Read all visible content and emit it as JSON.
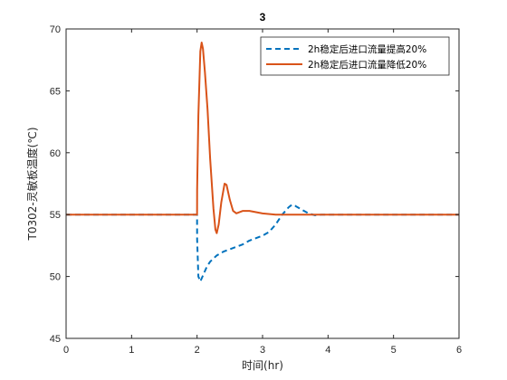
{
  "chart_data": {
    "type": "line",
    "title": "3",
    "xlabel": "时间(hr)",
    "ylabel": "T0302-灵敏板温度(℃)",
    "xlim": [
      0,
      6
    ],
    "ylim": [
      45,
      70
    ],
    "xticks": [
      "0",
      "1",
      "2",
      "3",
      "4",
      "5",
      "6"
    ],
    "yticks": [
      "45",
      "50",
      "55",
      "60",
      "65",
      "70"
    ],
    "grid": false,
    "legend_position": "top-right",
    "series": [
      {
        "name": "2h稳定后进口流量提高20%",
        "color": "#0072BD",
        "style": "dashed",
        "points": [
          [
            0,
            55
          ],
          [
            2,
            55
          ],
          [
            2.001,
            53
          ],
          [
            2.02,
            50
          ],
          [
            2.05,
            49.6
          ],
          [
            2.1,
            50.2
          ],
          [
            2.15,
            50.8
          ],
          [
            2.2,
            51.2
          ],
          [
            2.3,
            51.7
          ],
          [
            2.4,
            52.0
          ],
          [
            2.5,
            52.2
          ],
          [
            2.6,
            52.4
          ],
          [
            2.7,
            52.6
          ],
          [
            2.8,
            52.9
          ],
          [
            2.9,
            53.1
          ],
          [
            3.0,
            53.3
          ],
          [
            3.1,
            53.6
          ],
          [
            3.2,
            54.2
          ],
          [
            3.3,
            55.0
          ],
          [
            3.4,
            55.6
          ],
          [
            3.45,
            55.8
          ],
          [
            3.5,
            55.7
          ],
          [
            3.6,
            55.4
          ],
          [
            3.7,
            55.1
          ],
          [
            3.8,
            54.95
          ],
          [
            3.9,
            55.0
          ],
          [
            4.0,
            55.0
          ],
          [
            6,
            55
          ]
        ]
      },
      {
        "name": "2h稳定后进口流量降低20%",
        "color": "#D95319",
        "style": "solid",
        "points": [
          [
            0,
            55
          ],
          [
            2,
            55
          ],
          [
            2.001,
            57
          ],
          [
            2.02,
            63
          ],
          [
            2.05,
            68.2
          ],
          [
            2.07,
            68.9
          ],
          [
            2.09,
            68.4
          ],
          [
            2.12,
            66.5
          ],
          [
            2.16,
            63.5
          ],
          [
            2.2,
            59.5
          ],
          [
            2.25,
            55.5
          ],
          [
            2.28,
            53.8
          ],
          [
            2.3,
            53.5
          ],
          [
            2.33,
            54.2
          ],
          [
            2.37,
            56.0
          ],
          [
            2.42,
            57.5
          ],
          [
            2.45,
            57.4
          ],
          [
            2.5,
            56.2
          ],
          [
            2.55,
            55.3
          ],
          [
            2.6,
            55.1
          ],
          [
            2.7,
            55.3
          ],
          [
            2.8,
            55.3
          ],
          [
            2.9,
            55.2
          ],
          [
            3.0,
            55.1
          ],
          [
            3.2,
            55.0
          ],
          [
            6,
            55
          ]
        ]
      }
    ]
  }
}
